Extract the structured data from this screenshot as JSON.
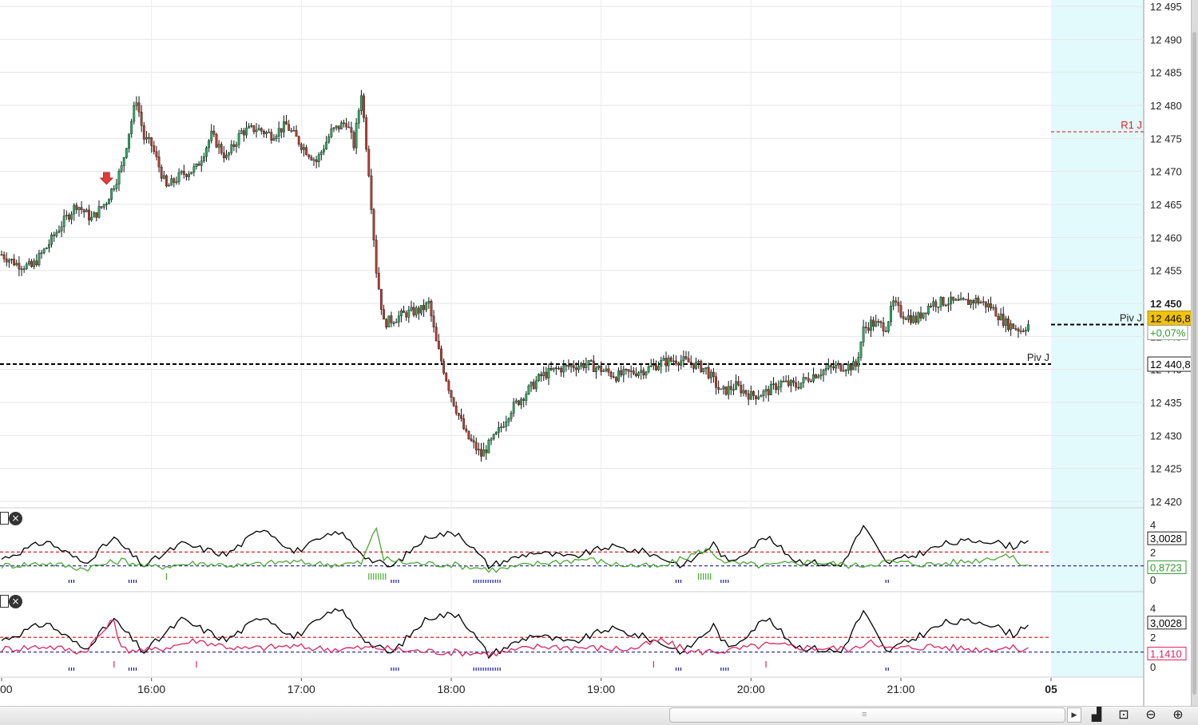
{
  "colors": {
    "bull": "#27ae60",
    "bear": "#c0392b",
    "wick": "#111111",
    "forecast_zone": "#e3fafd",
    "ind_green": "#4aa832",
    "ind_red": "#e0245e",
    "ind_black": "#000000",
    "level_red": "#e02020",
    "level_blue": "#1a1aa0",
    "price_tag": "#f2c300",
    "change_green": "#2e9a2e"
  },
  "chart_data": [
    {
      "type": "candlestick",
      "x_ticks": [
        "00",
        "16:00",
        "17:00",
        "18:00",
        "19:00",
        "20:00",
        "21:00",
        "05"
      ],
      "y_ticks": [
        "12 420",
        "12 425",
        "12 430",
        "12 435",
        "12 440",
        "12 445",
        "12 450",
        "12 455",
        "12 460",
        "12 465",
        "12 470",
        "12 475",
        "12 480",
        "12 485",
        "12 490",
        "12 495"
      ],
      "ylim": [
        12419,
        12495.5
      ],
      "close_path": [
        [
          15.0,
          12457.4
        ],
        [
          15.1,
          12456.0
        ],
        [
          15.2,
          12455.5
        ],
        [
          15.3,
          12458.5
        ],
        [
          15.4,
          12462.0
        ],
        [
          15.5,
          12465.0
        ],
        [
          15.6,
          12462.8
        ],
        [
          15.7,
          12465.5
        ],
        [
          15.75,
          12468.0
        ],
        [
          15.8,
          12470.5
        ],
        [
          15.85,
          12476.0
        ],
        [
          15.9,
          12481.0
        ],
        [
          15.95,
          12475.0
        ],
        [
          16.0,
          12474.0
        ],
        [
          16.1,
          12467.5
        ],
        [
          16.2,
          12469.5
        ],
        [
          16.3,
          12470.5
        ],
        [
          16.4,
          12475.5
        ],
        [
          16.5,
          12472.0
        ],
        [
          16.6,
          12476.0
        ],
        [
          16.7,
          12476.5
        ],
        [
          16.8,
          12475.5
        ],
        [
          16.9,
          12477.0
        ],
        [
          17.0,
          12474.0
        ],
        [
          17.1,
          12471.5
        ],
        [
          17.2,
          12476.0
        ],
        [
          17.3,
          12477.5
        ],
        [
          17.35,
          12474.0
        ],
        [
          17.4,
          12482.0
        ],
        [
          17.45,
          12470.0
        ],
        [
          17.5,
          12455.0
        ],
        [
          17.55,
          12447.0
        ],
        [
          17.6,
          12447.5
        ],
        [
          17.7,
          12448.5
        ],
        [
          17.8,
          12449.0
        ],
        [
          17.85,
          12450.0
        ],
        [
          17.9,
          12444.0
        ],
        [
          17.95,
          12440.0
        ],
        [
          18.0,
          12436.0
        ],
        [
          18.1,
          12430.0
        ],
        [
          18.2,
          12427.0
        ],
        [
          18.3,
          12430.0
        ],
        [
          18.4,
          12434.0
        ],
        [
          18.5,
          12436.5
        ],
        [
          18.6,
          12439.0
        ],
        [
          18.7,
          12440.0
        ],
        [
          18.8,
          12440.5
        ],
        [
          18.9,
          12440.8
        ],
        [
          19.0,
          12440.0
        ],
        [
          19.1,
          12439.0
        ],
        [
          19.2,
          12439.5
        ],
        [
          19.3,
          12440.0
        ],
        [
          19.4,
          12441.0
        ],
        [
          19.5,
          12441.5
        ],
        [
          19.6,
          12441.0
        ],
        [
          19.7,
          12440.0
        ],
        [
          19.8,
          12436.5
        ],
        [
          19.9,
          12437.5
        ],
        [
          20.0,
          12436.0
        ],
        [
          20.1,
          12436.5
        ],
        [
          20.2,
          12438.0
        ],
        [
          20.3,
          12437.5
        ],
        [
          20.4,
          12439.0
        ],
        [
          20.5,
          12440.0
        ],
        [
          20.6,
          12440.5
        ],
        [
          20.7,
          12440.5
        ],
        [
          20.75,
          12446.0
        ],
        [
          20.8,
          12447.0
        ],
        [
          20.9,
          12446.5
        ],
        [
          20.95,
          12450.0
        ],
        [
          21.0,
          12448.5
        ],
        [
          21.1,
          12447.5
        ],
        [
          21.2,
          12450.0
        ],
        [
          21.3,
          12450.3
        ],
        [
          21.4,
          12450.0
        ],
        [
          21.5,
          12450.5
        ],
        [
          21.6,
          12449.5
        ],
        [
          21.7,
          12447.0
        ],
        [
          21.8,
          12446.0
        ],
        [
          21.85,
          12446.8
        ]
      ],
      "levels": [
        {
          "label": "R1 J",
          "value": 12476.0
        },
        {
          "label": "Piv J",
          "value": 12446.8
        },
        {
          "label": "Piv J",
          "value": 12440.8
        }
      ],
      "current_price_tag": "12 446,8",
      "change_tag": "+0,07%",
      "level_tag": "12 440,8",
      "bold_tick": "12 450",
      "signal_arrow": {
        "x": 15.7,
        "y": 12469.0,
        "direction": "down"
      }
    },
    {
      "type": "line",
      "y_ticks": [
        "0",
        "2",
        "4"
      ],
      "ylim": [
        -0.7,
        4.4
      ],
      "levels": [
        2.0,
        1.0
      ],
      "series": [
        {
          "key": "black",
          "anchors": [
            [
              15.0,
              1.5
            ],
            [
              15.3,
              2.8
            ],
            [
              15.55,
              1.2
            ],
            [
              15.75,
              3.0
            ],
            [
              15.95,
              1.0
            ],
            [
              16.2,
              2.6
            ],
            [
              16.5,
              1.8
            ],
            [
              16.75,
              3.8
            ],
            [
              16.95,
              2.0
            ],
            [
              17.25,
              3.5
            ],
            [
              17.45,
              1.5
            ],
            [
              17.6,
              0.9
            ],
            [
              17.85,
              3.2
            ],
            [
              18.05,
              3.4
            ],
            [
              18.25,
              1.0
            ],
            [
              18.55,
              2.0
            ],
            [
              18.8,
              1.6
            ],
            [
              19.05,
              2.4
            ],
            [
              19.3,
              2.0
            ],
            [
              19.55,
              1.0
            ],
            [
              19.75,
              2.6
            ],
            [
              19.85,
              1.2
            ],
            [
              20.1,
              3.1
            ],
            [
              20.3,
              1.4
            ],
            [
              20.6,
              1.0
            ],
            [
              20.75,
              3.9
            ],
            [
              20.9,
              1.2
            ],
            [
              21.1,
              1.8
            ],
            [
              21.3,
              2.6
            ],
            [
              21.55,
              2.9
            ],
            [
              21.75,
              2.4
            ],
            [
              21.85,
              3.0
            ]
          ]
        },
        {
          "key": "green",
          "anchors": [
            [
              15.0,
              1.0
            ],
            [
              15.3,
              1.2
            ],
            [
              15.55,
              0.8
            ],
            [
              15.8,
              1.4
            ],
            [
              16.0,
              0.9
            ],
            [
              16.3,
              1.2
            ],
            [
              16.6,
              1.0
            ],
            [
              16.9,
              1.3
            ],
            [
              17.2,
              1.1
            ],
            [
              17.4,
              1.2
            ],
            [
              17.5,
              3.8
            ],
            [
              17.55,
              1.5
            ],
            [
              17.7,
              1.2
            ],
            [
              18.0,
              1.1
            ],
            [
              18.3,
              0.7
            ],
            [
              18.6,
              1.2
            ],
            [
              18.9,
              1.5
            ],
            [
              19.1,
              1.1
            ],
            [
              19.4,
              0.9
            ],
            [
              19.7,
              2.2
            ],
            [
              19.85,
              1.2
            ],
            [
              20.1,
              1.0
            ],
            [
              20.4,
              1.3
            ],
            [
              20.7,
              1.0
            ],
            [
              20.9,
              1.3
            ],
            [
              21.2,
              1.1
            ],
            [
              21.5,
              1.4
            ],
            [
              21.7,
              1.8
            ],
            [
              21.85,
              0.9
            ]
          ]
        }
      ],
      "value_tags": [
        "3,0028",
        "0,8723"
      ]
    },
    {
      "type": "line",
      "y_ticks": [
        "0",
        "2",
        "4"
      ],
      "ylim": [
        -0.7,
        4.4
      ],
      "levels": [
        2.0,
        1.0
      ],
      "series": [
        {
          "key": "black",
          "anchors": [
            [
              15.0,
              1.8
            ],
            [
              15.3,
              3.0
            ],
            [
              15.55,
              1.2
            ],
            [
              15.75,
              3.2
            ],
            [
              15.95,
              1.0
            ],
            [
              16.2,
              3.2
            ],
            [
              16.5,
              1.8
            ],
            [
              16.75,
              3.5
            ],
            [
              16.95,
              2.0
            ],
            [
              17.25,
              4.0
            ],
            [
              17.45,
              1.6
            ],
            [
              17.6,
              0.9
            ],
            [
              17.85,
              3.4
            ],
            [
              18.05,
              3.6
            ],
            [
              18.25,
              0.8
            ],
            [
              18.55,
              2.2
            ],
            [
              18.8,
              1.6
            ],
            [
              19.05,
              2.6
            ],
            [
              19.3,
              2.0
            ],
            [
              19.55,
              1.0
            ],
            [
              19.75,
              2.8
            ],
            [
              19.85,
              1.2
            ],
            [
              20.1,
              3.3
            ],
            [
              20.3,
              1.4
            ],
            [
              20.6,
              1.0
            ],
            [
              20.75,
              3.8
            ],
            [
              20.9,
              1.0
            ],
            [
              21.1,
              2.0
            ],
            [
              21.3,
              3.0
            ],
            [
              21.55,
              3.1
            ],
            [
              21.75,
              2.2
            ],
            [
              21.85,
              3.0
            ]
          ]
        },
        {
          "key": "red",
          "anchors": [
            [
              15.0,
              1.2
            ],
            [
              15.3,
              1.4
            ],
            [
              15.55,
              1.0
            ],
            [
              15.75,
              3.2
            ],
            [
              15.8,
              1.2
            ],
            [
              16.0,
              1.1
            ],
            [
              16.3,
              1.8
            ],
            [
              16.6,
              1.2
            ],
            [
              16.9,
              1.4
            ],
            [
              17.2,
              1.2
            ],
            [
              17.5,
              1.3
            ],
            [
              17.7,
              1.1
            ],
            [
              18.0,
              1.0
            ],
            [
              18.3,
              0.9
            ],
            [
              18.6,
              1.4
            ],
            [
              18.9,
              1.3
            ],
            [
              19.2,
              1.2
            ],
            [
              19.4,
              1.8
            ],
            [
              19.6,
              1.0
            ],
            [
              19.85,
              1.1
            ],
            [
              20.1,
              1.5
            ],
            [
              20.4,
              1.3
            ],
            [
              20.7,
              1.2
            ],
            [
              20.8,
              1.9
            ],
            [
              20.9,
              1.2
            ],
            [
              21.2,
              1.4
            ],
            [
              21.5,
              1.2
            ],
            [
              21.7,
              1.3
            ],
            [
              21.85,
              1.14
            ]
          ]
        }
      ],
      "value_tags": [
        "3,0028",
        "1,1410"
      ]
    }
  ],
  "toolbar": {
    "btn_a": "⬚",
    "btn_close": "×"
  },
  "icons": [
    "scroll-right-icon",
    "chart-settings-icon",
    "zoom-fit-icon",
    "zoom-out-icon",
    "zoom-in-icon"
  ]
}
